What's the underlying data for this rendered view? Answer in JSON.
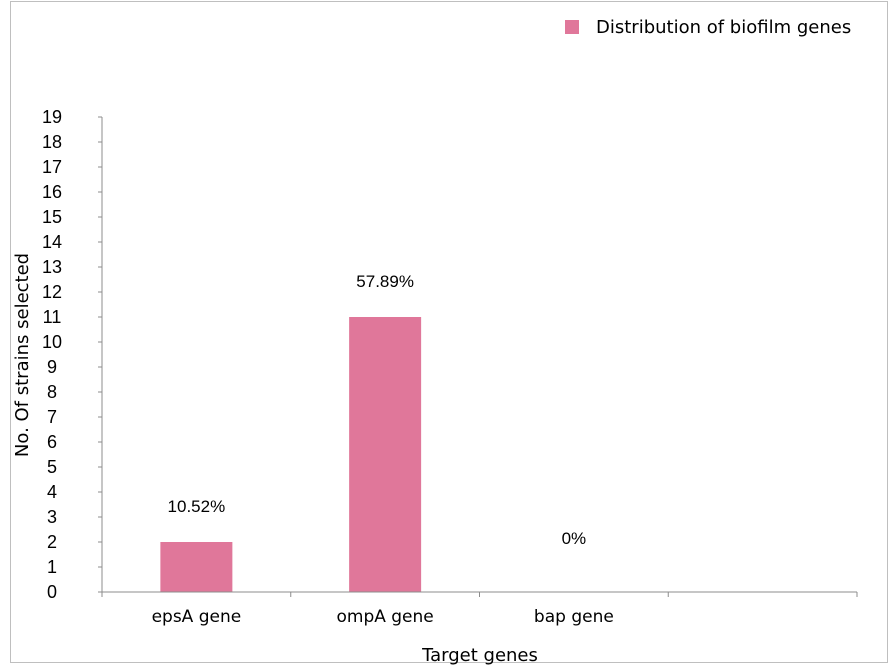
{
  "chart_data": {
    "type": "bar",
    "categories": [
      "epsA gene",
      "ompA gene",
      "bap gene",
      ""
    ],
    "values": [
      2,
      11,
      0,
      null
    ],
    "data_labels": [
      "10.52%",
      "57.89%",
      "0%",
      ""
    ],
    "xlabel": "Target genes",
    "ylabel": "No. Of strains selected",
    "ylim": [
      0,
      19
    ],
    "yticks": [
      0,
      1,
      2,
      3,
      4,
      5,
      6,
      7,
      8,
      9,
      10,
      11,
      12,
      13,
      14,
      15,
      16,
      17,
      18,
      19
    ],
    "grid": false,
    "legend": {
      "position": "top-right",
      "entries": [
        "Distribution of biofilm genes"
      ]
    },
    "colors": {
      "bar": "#e0779a",
      "axis": "#8c8c8c"
    }
  }
}
